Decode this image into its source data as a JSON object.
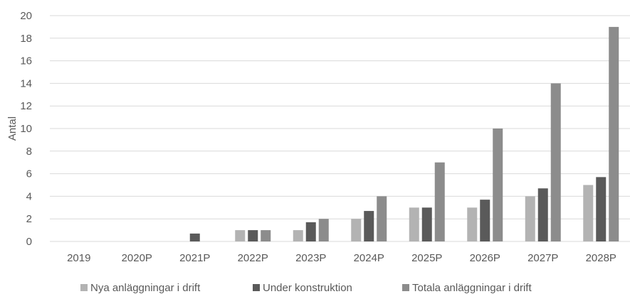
{
  "chart_data": {
    "type": "bar",
    "title": "",
    "xlabel": "",
    "ylabel": "Antal",
    "ylim": [
      0,
      20
    ],
    "yticks": [
      0,
      2,
      4,
      6,
      8,
      10,
      12,
      14,
      16,
      18,
      20
    ],
    "grid": true,
    "legend_position": "bottom",
    "categories": [
      "2019",
      "2020P",
      "2021P",
      "2022P",
      "2023P",
      "2024P",
      "2025P",
      "2026P",
      "2027P",
      "2028P"
    ],
    "series": [
      {
        "name": "Nya anläggningar i drift",
        "color": "#b3b3b3",
        "values": [
          0,
          0,
          0,
          1,
          1,
          2,
          3,
          3,
          4,
          5
        ]
      },
      {
        "name": "Under konstruktion",
        "color": "#5a5a5a",
        "values": [
          0,
          0,
          0.7,
          1,
          1.7,
          2.7,
          3,
          3.7,
          4.7,
          5.7
        ]
      },
      {
        "name": "Totala anläggningar i drift",
        "color": "#8c8c8c",
        "values": [
          0,
          0,
          0,
          1,
          2,
          4,
          7,
          10,
          14,
          19
        ]
      }
    ]
  }
}
